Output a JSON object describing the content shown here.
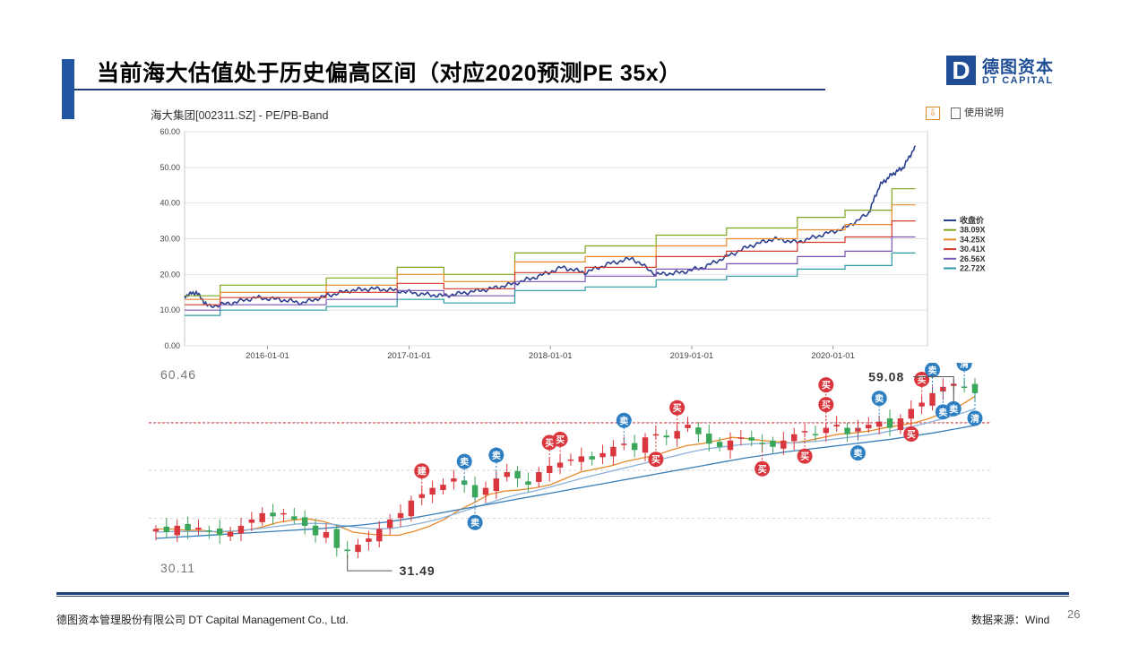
{
  "slide": {
    "title": "当前海大估值处于历史偏高区间（对应2020预测PE 35x）",
    "logo_letter": "D",
    "logo_cn": "德图资本",
    "logo_en": "DT CAPITAL",
    "footer_left": "德图资本管理股份有限公司  DT Capital  Management  Co., Ltd.",
    "footer_right": "数据来源：Wind",
    "page_number": "26",
    "accent_color": "#2255a4"
  },
  "toolbar": {
    "download_icon": "download-icon",
    "help_label": "使用说明"
  },
  "chart_data": [
    {
      "type": "line",
      "title": "海大集团[002311.SZ] - PE/PB-Band",
      "ylim": [
        0,
        60
      ],
      "yticks": [
        "0.00",
        "10.00",
        "20.00",
        "30.00",
        "40.00",
        "50.00",
        "60.00"
      ],
      "xticks": [
        "2016-01-01",
        "2017-01-01",
        "2018-01-01",
        "2019-01-01",
        "2020-01-01"
      ],
      "xrange": [
        "2015-06-01",
        "2020-09-01"
      ],
      "legend_position": "right",
      "grid": true,
      "series": [
        {
          "name": "收盘价",
          "color": "#2b3e8f",
          "points": [
            [
              "2015-06-01",
              14
            ],
            [
              "2015-07-01",
              15
            ],
            [
              "2015-08-01",
              11
            ],
            [
              "2015-10-01",
              12
            ],
            [
              "2015-12-01",
              13.5
            ],
            [
              "2016-02-01",
              13
            ],
            [
              "2016-04-01",
              12
            ],
            [
              "2016-06-01",
              14
            ],
            [
              "2016-08-01",
              15.5
            ],
            [
              "2016-10-01",
              16
            ],
            [
              "2016-12-01",
              15.5
            ],
            [
              "2017-02-01",
              14.5
            ],
            [
              "2017-04-01",
              14
            ],
            [
              "2017-06-01",
              15
            ],
            [
              "2017-08-01",
              16
            ],
            [
              "2017-10-01",
              17.5
            ],
            [
              "2017-12-01",
              19.5
            ],
            [
              "2018-02-01",
              22
            ],
            [
              "2018-04-01",
              20.5
            ],
            [
              "2018-06-01",
              23
            ],
            [
              "2018-08-01",
              24.5
            ],
            [
              "2018-10-01",
              20
            ],
            [
              "2018-12-01",
              20.5
            ],
            [
              "2019-02-01",
              22
            ],
            [
              "2019-04-01",
              25
            ],
            [
              "2019-06-01",
              28
            ],
            [
              "2019-08-01",
              30
            ],
            [
              "2019-10-01",
              29
            ],
            [
              "2019-12-01",
              31
            ],
            [
              "2020-02-01",
              33
            ],
            [
              "2020-04-01",
              37
            ],
            [
              "2020-05-01",
              45
            ],
            [
              "2020-06-01",
              48
            ],
            [
              "2020-07-01",
              50
            ],
            [
              "2020-08-01",
              56
            ]
          ]
        },
        {
          "name": "38.09X",
          "color": "#7fa61f",
          "points": [
            [
              "2015-06-01",
              14
            ],
            [
              "2015-09-01",
              17
            ],
            [
              "2016-06-01",
              19
            ],
            [
              "2016-12-01",
              22
            ],
            [
              "2017-04-01",
              20
            ],
            [
              "2017-10-01",
              26
            ],
            [
              "2018-04-01",
              28
            ],
            [
              "2018-10-01",
              31
            ],
            [
              "2019-04-01",
              33
            ],
            [
              "2019-10-01",
              36
            ],
            [
              "2020-02-01",
              38
            ],
            [
              "2020-06-01",
              44
            ],
            [
              "2020-08-01",
              44
            ]
          ]
        },
        {
          "name": "34.25X",
          "color": "#e8892b",
          "points": [
            [
              "2015-06-01",
              13
            ],
            [
              "2015-09-01",
              15
            ],
            [
              "2016-06-01",
              17
            ],
            [
              "2016-12-01",
              20
            ],
            [
              "2017-04-01",
              18
            ],
            [
              "2017-10-01",
              23.5
            ],
            [
              "2018-04-01",
              25
            ],
            [
              "2018-10-01",
              28
            ],
            [
              "2019-04-01",
              30
            ],
            [
              "2019-10-01",
              32.5
            ],
            [
              "2020-02-01",
              34
            ],
            [
              "2020-06-01",
              39.5
            ],
            [
              "2020-08-01",
              39.5
            ]
          ]
        },
        {
          "name": "30.41X",
          "color": "#d23a2a",
          "points": [
            [
              "2015-06-01",
              11.5
            ],
            [
              "2015-09-01",
              13.5
            ],
            [
              "2016-06-01",
              15
            ],
            [
              "2016-12-01",
              17.5
            ],
            [
              "2017-04-01",
              16
            ],
            [
              "2017-10-01",
              20.5
            ],
            [
              "2018-04-01",
              22
            ],
            [
              "2018-10-01",
              25
            ],
            [
              "2019-04-01",
              26.5
            ],
            [
              "2019-10-01",
              29
            ],
            [
              "2020-02-01",
              30.5
            ],
            [
              "2020-06-01",
              35
            ],
            [
              "2020-08-01",
              35
            ]
          ]
        },
        {
          "name": "26.56X",
          "color": "#7a55b8",
          "points": [
            [
              "2015-06-01",
              10
            ],
            [
              "2015-09-01",
              11.5
            ],
            [
              "2016-06-01",
              13
            ],
            [
              "2016-12-01",
              15.5
            ],
            [
              "2017-04-01",
              14
            ],
            [
              "2017-10-01",
              18
            ],
            [
              "2018-04-01",
              19.5
            ],
            [
              "2018-10-01",
              21.5
            ],
            [
              "2019-04-01",
              23
            ],
            [
              "2019-10-01",
              25
            ],
            [
              "2020-02-01",
              26.5
            ],
            [
              "2020-06-01",
              30.5
            ],
            [
              "2020-08-01",
              30.5
            ]
          ]
        },
        {
          "name": "22.72X",
          "color": "#2a9aa5",
          "points": [
            [
              "2015-06-01",
              8.5
            ],
            [
              "2015-09-01",
              10
            ],
            [
              "2016-06-01",
              11
            ],
            [
              "2016-12-01",
              13
            ],
            [
              "2017-04-01",
              12
            ],
            [
              "2017-10-01",
              15.5
            ],
            [
              "2018-04-01",
              16.5
            ],
            [
              "2018-10-01",
              18.5
            ],
            [
              "2019-04-01",
              19.5
            ],
            [
              "2019-10-01",
              21.5
            ],
            [
              "2020-02-01",
              22.5
            ],
            [
              "2020-06-01",
              26
            ],
            [
              "2020-08-01",
              26
            ]
          ]
        }
      ]
    },
    {
      "type": "candlestick",
      "ylim": [
        30.11,
        60.46
      ],
      "y_top_label": "60.46",
      "y_bottom_label": "30.11",
      "high_label": "59.08",
      "low_label": "31.49",
      "up_color": "#d9363e",
      "down_color": "#3aa65a",
      "closes": [
        36,
        35.5,
        36.5,
        35.8,
        36.2,
        35.6,
        35,
        35.5,
        36.5,
        37.5,
        38.5,
        38,
        38.5,
        37.5,
        36.5,
        35,
        35.5,
        33,
        32.5,
        33.5,
        34.5,
        36,
        37.5,
        38.5,
        40.5,
        41.5,
        42.5,
        43,
        44,
        43,
        41,
        42.5,
        44,
        45,
        44,
        43,
        45,
        46,
        46.5,
        47,
        47.5,
        47,
        48,
        49,
        49.5,
        48.5,
        50.5,
        51,
        50.5,
        51.5,
        52.5,
        51,
        49.5,
        49,
        50,
        50.5,
        50,
        49.5,
        49,
        50,
        51,
        51.5,
        51,
        52,
        52.5,
        51,
        52,
        52.5,
        53,
        52,
        53.5,
        55,
        56,
        57.5,
        58.5,
        59,
        58.5,
        57.5
      ],
      "ma": [
        {
          "color": "#e8892b",
          "values": [
            36,
            36,
            35.8,
            35.8,
            35.5,
            35.6,
            35.8,
            36.3,
            37,
            37.4,
            37.6,
            37.2,
            36.5,
            35.5,
            35.2,
            35,
            35,
            35.6,
            36.4,
            37.5,
            39,
            40.2,
            41.5,
            42,
            42.2,
            42.5,
            43,
            44,
            45,
            45.5,
            46,
            46.7,
            47.2,
            47.7,
            48.5,
            49.2,
            49.5,
            50,
            50.5,
            50.3,
            50,
            49.8,
            49.6,
            50,
            50.5,
            51,
            51.2,
            51.5,
            52,
            52.4,
            52.8,
            53.5,
            54.5,
            55.5,
            57
          ]
        },
        {
          "color": "#8ab0d8",
          "values": [
            35.5,
            35.6,
            35.6,
            35.6,
            35.6,
            35.7,
            35.9,
            36.2,
            36.5,
            36.8,
            36.9,
            36.8,
            36.5,
            36.2,
            36,
            36.1,
            36.5,
            37,
            37.6,
            38.4,
            39.2,
            40,
            40.8,
            41.5,
            42,
            42.6,
            43.3,
            44,
            44.6,
            45.2,
            45.8,
            46.4,
            47,
            47.6,
            48.2,
            48.7,
            49,
            49.3,
            49.5,
            49.6,
            49.6,
            49.7,
            49.9,
            50.2,
            50.5,
            50.8,
            51.2,
            51.7,
            52.2,
            52.8,
            53.5,
            54.2,
            55
          ]
        },
        {
          "color": "#3a7fb8",
          "values": [
            34.5,
            34.7,
            34.9,
            35.1,
            35.3,
            35.5,
            35.7,
            35.9,
            36.1,
            36.4,
            36.7,
            37.1,
            37.6,
            38.2,
            38.8,
            39.4,
            40,
            40.6,
            41.2,
            41.8,
            42.4,
            43,
            43.6,
            44.2,
            44.8,
            45.4,
            46,
            46.6,
            47.2,
            47.7,
            48.2,
            48.6,
            49,
            49.4,
            49.8,
            50.2,
            50.7,
            51.2,
            51.8,
            52.4
          ]
        }
      ],
      "signals": [
        {
          "label": "建",
          "i": 25,
          "pos": "above",
          "color": "#d9363e"
        },
        {
          "label": "卖",
          "i": 29,
          "pos": "above",
          "color": "#2e7fc2"
        },
        {
          "label": "卖",
          "i": 32,
          "pos": "above",
          "color": "#2e7fc2"
        },
        {
          "label": "卖",
          "i": 30,
          "pos": "below",
          "color": "#2e7fc2"
        },
        {
          "label": "买",
          "i": 37,
          "pos": "above",
          "color": "#d9363e"
        },
        {
          "label": "买",
          "i": 38,
          "pos": "above",
          "color": "#d9363e"
        },
        {
          "label": "卖",
          "i": 44,
          "pos": "above",
          "color": "#2e7fc2"
        },
        {
          "label": "买",
          "i": 47,
          "pos": "below",
          "color": "#d9363e"
        },
        {
          "label": "买",
          "i": 49,
          "pos": "above",
          "color": "#d9363e"
        },
        {
          "label": "买",
          "i": 57,
          "pos": "below",
          "color": "#d9363e"
        },
        {
          "label": "买",
          "i": 61,
          "pos": "below",
          "color": "#d9363e"
        },
        {
          "label": "买",
          "i": 63,
          "pos": "above",
          "color": "#d9363e"
        },
        {
          "label": "买",
          "i": 63,
          "pos": "above2",
          "color": "#d9363e"
        },
        {
          "label": "卖",
          "i": 66,
          "pos": "below",
          "color": "#2e7fc2"
        },
        {
          "label": "卖",
          "i": 68,
          "pos": "above",
          "color": "#2e7fc2"
        },
        {
          "label": "买",
          "i": 71,
          "pos": "below",
          "color": "#d9363e"
        },
        {
          "label": "买",
          "i": 72,
          "pos": "above",
          "color": "#d9363e"
        },
        {
          "label": "卖",
          "i": 73,
          "pos": "above",
          "color": "#2e7fc2"
        },
        {
          "label": "卖",
          "i": 74,
          "pos": "below",
          "color": "#2e7fc2"
        },
        {
          "label": "卖",
          "i": 75,
          "pos": "below",
          "color": "#2e7fc2"
        },
        {
          "label": "清",
          "i": 76,
          "pos": "above",
          "color": "#2e7fc2"
        },
        {
          "label": "清",
          "i": 77,
          "pos": "below",
          "color": "#2e7fc2"
        }
      ]
    }
  ]
}
